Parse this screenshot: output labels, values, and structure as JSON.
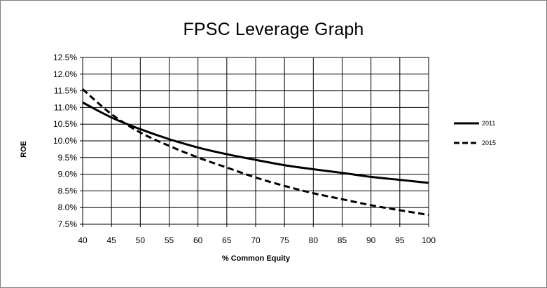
{
  "chart_data": {
    "type": "line",
    "title": "FPSC Leverage Graph",
    "xlabel": "% Common Equity",
    "ylabel": "ROE",
    "xlim": [
      40,
      100
    ],
    "ylim": [
      7.5,
      12.5
    ],
    "x_ticks": [
      "40",
      "45",
      "50",
      "55",
      "60",
      "65",
      "70",
      "75",
      "80",
      "85",
      "90",
      "95",
      "100"
    ],
    "y_ticks": [
      "7.5%",
      "8.0%",
      "8.5%",
      "9.0%",
      "9.5%",
      "10.0%",
      "10.5%",
      "11.0%",
      "11.5%",
      "12.0%",
      "12.5%"
    ],
    "grid": true,
    "legend_position": "right",
    "x": [
      40,
      45,
      50,
      55,
      60,
      65,
      70,
      75,
      80,
      85,
      90,
      95,
      100
    ],
    "series": [
      {
        "name": "2011",
        "style": "solid",
        "color": "#000000",
        "values": [
          11.15,
          10.7,
          10.35,
          10.05,
          9.8,
          9.6,
          9.43,
          9.27,
          9.15,
          9.04,
          8.92,
          8.83,
          8.74
        ]
      },
      {
        "name": "2015",
        "style": "dashed",
        "color": "#000000",
        "values": [
          11.55,
          10.8,
          10.25,
          9.85,
          9.5,
          9.2,
          8.9,
          8.65,
          8.43,
          8.25,
          8.07,
          7.92,
          7.78
        ]
      }
    ]
  }
}
